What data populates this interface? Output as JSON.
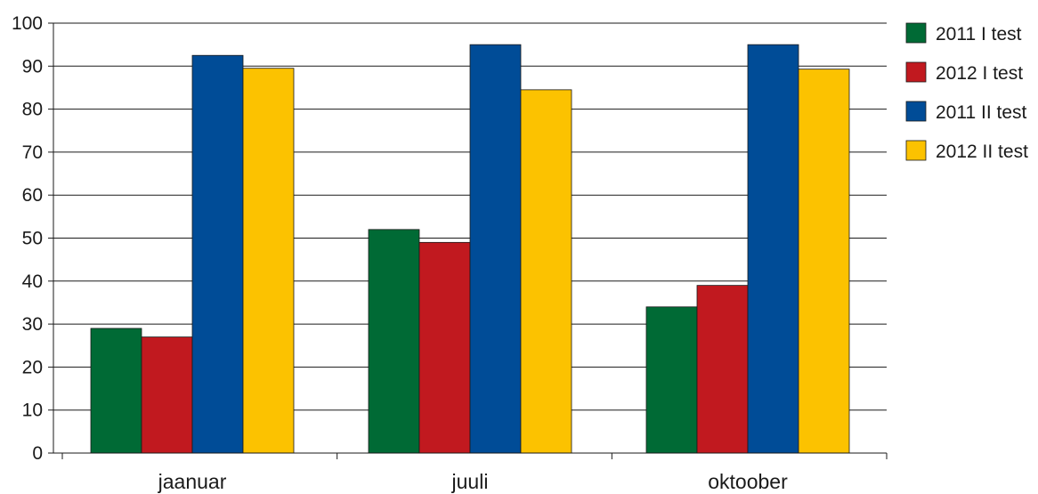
{
  "chart_data": {
    "type": "bar",
    "categories": [
      "jaanuar",
      "juuli",
      "oktoober"
    ],
    "series": [
      {
        "name": "2011 I test",
        "color": "#006a35",
        "values": [
          29,
          52,
          34
        ]
      },
      {
        "name": "2012 I test",
        "color": "#c1191f",
        "values": [
          27,
          49,
          39
        ]
      },
      {
        "name": "2011 II test",
        "color": "#004c97",
        "values": [
          92.5,
          95,
          95
        ]
      },
      {
        "name": "2012 II test",
        "color": "#fcc200",
        "values": [
          89.5,
          84.5,
          89.3
        ]
      }
    ],
    "ylim": [
      0,
      100
    ],
    "yticks": [
      "0",
      "10",
      "20",
      "30",
      "40",
      "50",
      "60",
      "70",
      "80",
      "90",
      "100"
    ],
    "grid": true,
    "legend_position": "right"
  }
}
